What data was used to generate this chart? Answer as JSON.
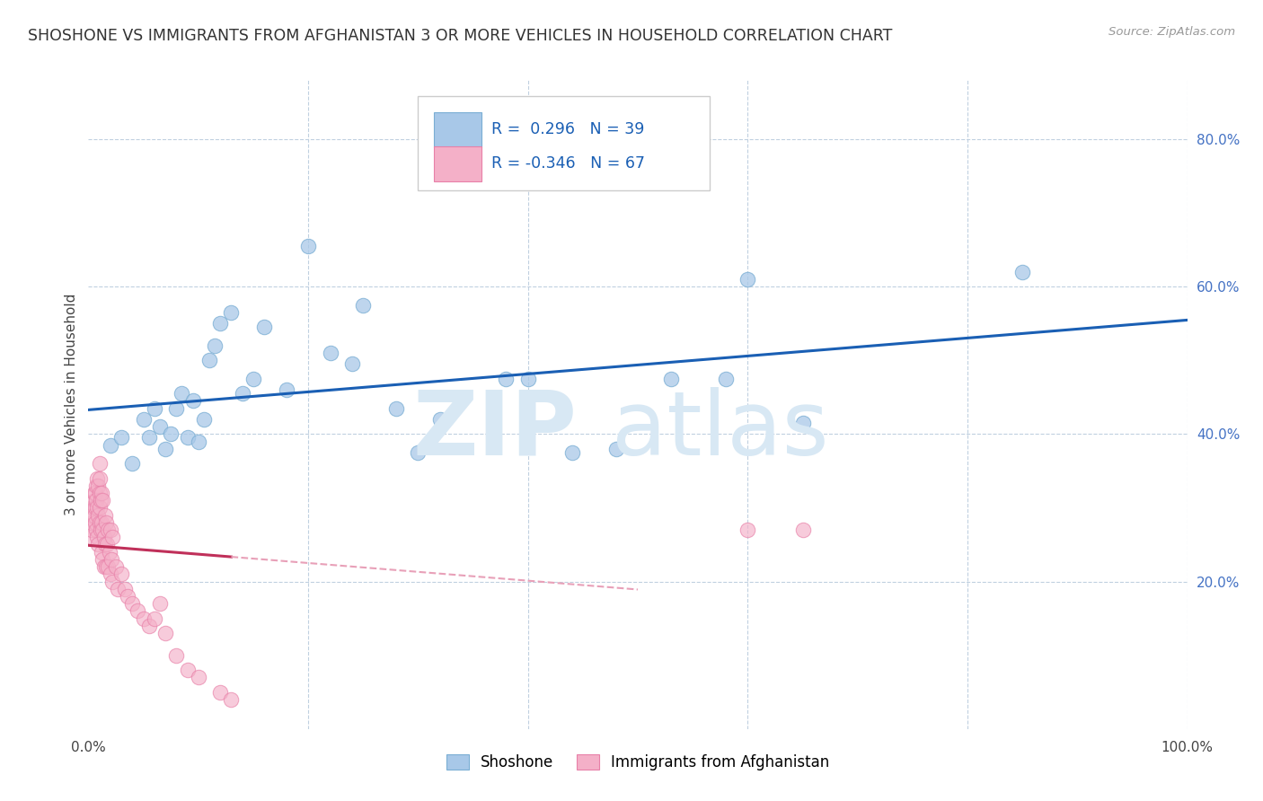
{
  "title": "SHOSHONE VS IMMIGRANTS FROM AFGHANISTAN 3 OR MORE VEHICLES IN HOUSEHOLD CORRELATION CHART",
  "source": "Source: ZipAtlas.com",
  "ylabel": "3 or more Vehicles in Household",
  "xlim": [
    0.0,
    1.0
  ],
  "ylim": [
    0.0,
    0.88
  ],
  "blue_color": "#a8c8e8",
  "blue_edge_color": "#7aaed4",
  "pink_color": "#f4b0c8",
  "pink_edge_color": "#e880a8",
  "blue_line_color": "#1a5fb4",
  "pink_line_color": "#c0305a",
  "pink_dash_color": "#e8a0b8",
  "background_color": "#ffffff",
  "grid_color": "#c0d0e0",
  "watermark_color": "#d8e8f4",
  "shoshone_x": [
    0.02,
    0.03,
    0.04,
    0.05,
    0.055,
    0.06,
    0.065,
    0.07,
    0.075,
    0.08,
    0.085,
    0.09,
    0.095,
    0.1,
    0.105,
    0.11,
    0.115,
    0.12,
    0.13,
    0.14,
    0.15,
    0.16,
    0.2,
    0.22,
    0.24,
    0.28,
    0.3,
    0.38,
    0.4,
    0.44,
    0.53,
    0.58,
    0.6,
    0.65,
    0.85,
    0.25,
    0.18,
    0.32,
    0.48
  ],
  "shoshone_y": [
    0.385,
    0.395,
    0.36,
    0.42,
    0.395,
    0.435,
    0.41,
    0.38,
    0.4,
    0.435,
    0.455,
    0.395,
    0.445,
    0.39,
    0.42,
    0.5,
    0.52,
    0.55,
    0.565,
    0.455,
    0.475,
    0.545,
    0.655,
    0.51,
    0.495,
    0.435,
    0.375,
    0.475,
    0.475,
    0.375,
    0.475,
    0.475,
    0.61,
    0.415,
    0.62,
    0.575,
    0.46,
    0.42,
    0.38
  ],
  "afghan_x": [
    0.002,
    0.003,
    0.003,
    0.004,
    0.004,
    0.005,
    0.005,
    0.005,
    0.006,
    0.006,
    0.006,
    0.007,
    0.007,
    0.007,
    0.008,
    0.008,
    0.008,
    0.009,
    0.009,
    0.009,
    0.01,
    0.01,
    0.01,
    0.01,
    0.01,
    0.011,
    0.011,
    0.012,
    0.012,
    0.012,
    0.013,
    0.013,
    0.013,
    0.014,
    0.014,
    0.015,
    0.015,
    0.016,
    0.016,
    0.017,
    0.018,
    0.018,
    0.019,
    0.02,
    0.02,
    0.021,
    0.022,
    0.022,
    0.025,
    0.027,
    0.03,
    0.033,
    0.036,
    0.04,
    0.045,
    0.05,
    0.055,
    0.06,
    0.065,
    0.07,
    0.08,
    0.09,
    0.1,
    0.12,
    0.13,
    0.6,
    0.65
  ],
  "afghan_y": [
    0.26,
    0.27,
    0.28,
    0.29,
    0.3,
    0.31,
    0.29,
    0.32,
    0.28,
    0.3,
    0.32,
    0.27,
    0.31,
    0.33,
    0.26,
    0.3,
    0.34,
    0.25,
    0.29,
    0.33,
    0.28,
    0.3,
    0.32,
    0.34,
    0.36,
    0.27,
    0.31,
    0.24,
    0.28,
    0.32,
    0.23,
    0.27,
    0.31,
    0.22,
    0.26,
    0.25,
    0.29,
    0.22,
    0.28,
    0.25,
    0.22,
    0.27,
    0.24,
    0.21,
    0.27,
    0.23,
    0.2,
    0.26,
    0.22,
    0.19,
    0.21,
    0.19,
    0.18,
    0.17,
    0.16,
    0.15,
    0.14,
    0.15,
    0.17,
    0.13,
    0.1,
    0.08,
    0.07,
    0.05,
    0.04,
    0.27,
    0.27
  ]
}
